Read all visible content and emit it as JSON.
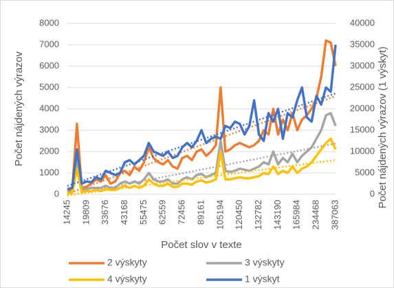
{
  "chart_data": {
    "type": "line",
    "x_label": "Počet slov v texte",
    "y_label": "Počet nájdených výrazov",
    "y2_label": "Počet nájdených výrazov (1 výskyt)",
    "categories": [
      "14245",
      null,
      null,
      null,
      "19809",
      null,
      null,
      null,
      "33676",
      null,
      null,
      null,
      "43168",
      null,
      null,
      null,
      "55475",
      null,
      null,
      null,
      "62559",
      null,
      null,
      null,
      "72456",
      null,
      null,
      null,
      "89161",
      null,
      null,
      null,
      "105194",
      null,
      null,
      null,
      "120450",
      null,
      null,
      null,
      "132782",
      null,
      null,
      null,
      "143190",
      null,
      null,
      null,
      "165984",
      null,
      null,
      null,
      "234468",
      null,
      null,
      null,
      "387063"
    ],
    "series": [
      {
        "name": "2 výskyty",
        "color": "#ED7D31",
        "values": [
          200,
          150,
          3300,
          300,
          350,
          500,
          700,
          600,
          900,
          500,
          600,
          1000,
          1100,
          900,
          1300,
          1100,
          1500,
          2200,
          1700,
          1500,
          1400,
          1600,
          1300,
          1200,
          1700,
          1800,
          1600,
          2000,
          2100,
          1800,
          2000,
          2300,
          5000,
          2000,
          2100,
          2300,
          2400,
          2300,
          2200,
          2300,
          2500,
          3000,
          2800,
          4000,
          2800,
          3500,
          3000,
          3800,
          3000,
          3500,
          3700,
          4000,
          4500,
          5500,
          7200,
          7100,
          6000
        ]
      },
      {
        "name": "3 výskyty",
        "color": "#A5A5A5",
        "values": [
          100,
          100,
          1700,
          200,
          250,
          300,
          300,
          300,
          400,
          300,
          300,
          500,
          600,
          500,
          600,
          500,
          700,
          1000,
          700,
          600,
          600,
          700,
          500,
          500,
          700,
          800,
          700,
          900,
          950,
          800,
          900,
          1000,
          2500,
          1100,
          1050,
          1100,
          1200,
          1150,
          1100,
          1200,
          1300,
          1500,
          1400,
          2000,
          1400,
          1700,
          1500,
          1900,
          1500,
          1800,
          2000,
          2200,
          2600,
          3000,
          3700,
          3800,
          3200
        ]
      },
      {
        "name": "4 výskyty",
        "color": "#FFC000",
        "values": [
          50,
          50,
          1200,
          100,
          150,
          150,
          200,
          150,
          250,
          200,
          200,
          300,
          400,
          300,
          400,
          300,
          400,
          700,
          500,
          400,
          400,
          500,
          350,
          350,
          500,
          500,
          450,
          600,
          650,
          550,
          600,
          700,
          2000,
          700,
          700,
          750,
          800,
          750,
          750,
          800,
          850,
          1000,
          950,
          1300,
          950,
          1100,
          1000,
          1300,
          1000,
          1200,
          1300,
          1500,
          1800,
          2100,
          2400,
          2600,
          2100
        ]
      },
      {
        "name": "1 výskyt",
        "color": "#4472C4",
        "axis": "y2",
        "values": [
          1200,
          1500,
          10500,
          2500,
          3000,
          2800,
          4000,
          3500,
          5500,
          5000,
          4500,
          5000,
          7500,
          8000,
          7000,
          8000,
          9000,
          12000,
          10000,
          9500,
          9000,
          10000,
          8500,
          9000,
          11000,
          12000,
          11000,
          12500,
          15000,
          12000,
          13000,
          13500,
          13000,
          16000,
          15500,
          17000,
          16500,
          14000,
          16000,
          22000,
          14000,
          12500,
          19000,
          17000,
          20000,
          13000,
          19000,
          18000,
          22000,
          25000,
          18000,
          17000,
          23000,
          21000,
          25000,
          24000,
          35000
        ]
      }
    ],
    "ylim": [
      0,
      8000
    ],
    "yticks": [
      0,
      1000,
      2000,
      3000,
      4000,
      5000,
      6000,
      7000,
      8000
    ],
    "y2lim": [
      0,
      40000
    ],
    "y2ticks": [
      0,
      5000,
      10000,
      15000,
      20000,
      25000,
      30000,
      35000,
      40000
    ],
    "grid": true,
    "trendlines": true,
    "legend": "bottom"
  }
}
